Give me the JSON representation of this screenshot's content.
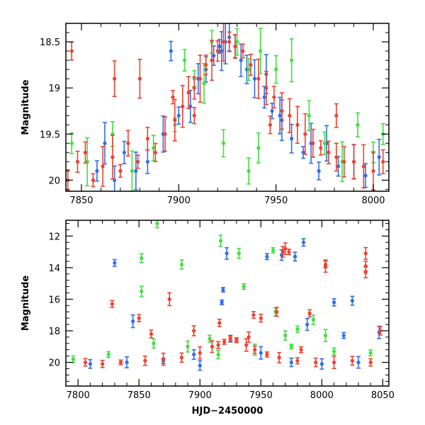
{
  "chart_data": [
    {
      "id": "top",
      "type": "scatter",
      "title": "",
      "xlabel": "",
      "ylabel": "Magnitude",
      "xlim": [
        7842,
        8008
      ],
      "ylim": [
        20.12,
        18.3
      ],
      "y_inverted": true,
      "grid": false,
      "xticks": [
        7850,
        7900,
        7950,
        8000
      ],
      "xtick_labels": [
        "7850",
        "7900",
        "7950",
        "8000"
      ],
      "yticks": [
        18.5,
        19,
        19.5,
        20
      ],
      "ytick_labels": [
        "18.5",
        "19",
        "19.5",
        "20"
      ],
      "series": [
        {
          "color": "#2f6ee8",
          "points": [
            [
              7858,
              19.9
            ],
            [
              7862,
              19.6
            ],
            [
              7867,
              20.0
            ],
            [
              7872,
              19.7
            ],
            [
              7878,
              19.9
            ],
            [
              7884,
              19.8
            ],
            [
              7892,
              19.5
            ],
            [
              7896,
              18.6
            ],
            [
              7900,
              19.3
            ],
            [
              7906,
              19.2
            ],
            [
              7910,
              18.9
            ],
            [
              7914,
              18.8
            ],
            [
              7918,
              18.65
            ],
            [
              7921,
              18.55
            ],
            [
              7924,
              18.5
            ],
            [
              7926,
              18.45
            ],
            [
              7929,
              18.55
            ],
            [
              7932,
              18.7
            ],
            [
              7935,
              18.8
            ],
            [
              7939,
              18.9
            ],
            [
              7944,
              19.1
            ],
            [
              7948,
              19.25
            ],
            [
              7953,
              19.35
            ],
            [
              7958,
              19.55
            ],
            [
              7964,
              19.7
            ],
            [
              7968,
              19.6
            ],
            [
              7972,
              19.9
            ],
            [
              7976,
              19.6
            ],
            [
              7982,
              19.85
            ],
            [
              7990,
              19.8
            ],
            [
              7996,
              19.95
            ],
            [
              8003,
              19.75
            ],
            [
              7945,
              18.85
            ],
            [
              7952,
              19.3
            ],
            [
              7922,
              18.6
            ]
          ]
        },
        {
          "color": "#3ee03e",
          "points": [
            [
              7845,
              19.6
            ],
            [
              7853,
              19.8
            ],
            [
              7866,
              19.5
            ],
            [
              7876,
              19.9
            ],
            [
              7887,
              19.65
            ],
            [
              7898,
              19.4
            ],
            [
              7903,
              18.7
            ],
            [
              7908,
              18.9
            ],
            [
              7913,
              18.95
            ],
            [
              7917,
              18.5
            ],
            [
              7930,
              18.5
            ],
            [
              7936,
              18.8
            ],
            [
              7942,
              18.6
            ],
            [
              7950,
              18.8
            ],
            [
              7958,
              18.7
            ],
            [
              7967,
              19.3
            ],
            [
              7975,
              19.6
            ],
            [
              7984,
              19.8
            ],
            [
              7992,
              19.4
            ],
            [
              8000,
              19.7
            ],
            [
              8005,
              19.5
            ],
            [
              7923,
              19.6
            ],
            [
              7941,
              19.65
            ],
            [
              7936,
              19.9
            ]
          ]
        },
        {
          "color": "#f04030",
          "points": [
            [
              7843,
              20.0
            ],
            [
              7845,
              18.6
            ],
            [
              7848,
              19.8
            ],
            [
              7852,
              19.7
            ],
            [
              7856,
              20.0
            ],
            [
              7861,
              19.85
            ],
            [
              7866,
              19.75
            ],
            [
              7870,
              19.9
            ],
            [
              7874,
              19.6
            ],
            [
              7879,
              19.8
            ],
            [
              7884,
              19.55
            ],
            [
              7888,
              19.7
            ],
            [
              7893,
              19.5
            ],
            [
              7898,
              19.35
            ],
            [
              7902,
              19.2
            ],
            [
              7905,
              19.05
            ],
            [
              7908,
              19.0
            ],
            [
              7911,
              18.9
            ],
            [
              7914,
              18.75
            ],
            [
              7917,
              18.7
            ],
            [
              7920,
              18.6
            ],
            [
              7923,
              18.5
            ],
            [
              7926,
              18.5
            ],
            [
              7929,
              18.55
            ],
            [
              7933,
              18.6
            ],
            [
              7937,
              18.75
            ],
            [
              7941,
              18.9
            ],
            [
              7945,
              19.0
            ],
            [
              7949,
              19.1
            ],
            [
              7953,
              19.25
            ],
            [
              7957,
              19.3
            ],
            [
              7961,
              19.4
            ],
            [
              7965,
              19.5
            ],
            [
              7969,
              19.6
            ],
            [
              7973,
              19.65
            ],
            [
              7977,
              19.7
            ],
            [
              7981,
              19.75
            ],
            [
              7985,
              19.8
            ],
            [
              7990,
              19.8
            ],
            [
              7995,
              19.85
            ],
            [
              8000,
              19.9
            ],
            [
              8005,
              19.8
            ],
            [
              7867,
              18.9
            ],
            [
              7880,
              18.9
            ],
            [
              7897,
              19.1
            ],
            [
              7908,
              19.3
            ],
            [
              7947,
              19.4
            ],
            [
              7981,
              19.3
            ]
          ]
        }
      ]
    },
    {
      "id": "bottom",
      "type": "scatter",
      "title": "",
      "xlabel": "HJD−2450000",
      "ylabel": "Magnitude",
      "xlim": [
        7790,
        8055
      ],
      "ylim": [
        21.5,
        11
      ],
      "y_inverted": true,
      "grid": false,
      "xticks": [
        7800,
        7850,
        7900,
        7950,
        8000,
        8050
      ],
      "xtick_labels": [
        "7800",
        "7850",
        "7900",
        "7950",
        "8000",
        "8050"
      ],
      "yticks": [
        12,
        14,
        16,
        18,
        20
      ],
      "ytick_labels": [
        "12",
        "14",
        "16",
        "18",
        "20"
      ],
      "series": [
        {
          "color": "#2f6ee8",
          "points": [
            [
              7830,
              13.7
            ],
            [
              7845,
              17.4
            ],
            [
              7900,
              20.2
            ],
            [
              7918,
              16.2
            ],
            [
              7919,
              15.4
            ],
            [
              7922,
              13.1
            ],
            [
              7955,
              13.3
            ],
            [
              7967,
              13.2
            ],
            [
              7978,
              13.3
            ],
            [
              7985,
              12.4
            ],
            [
              8010,
              16.2
            ],
            [
              8025,
              16.1
            ],
            [
              7988,
              17.6
            ],
            [
              8018,
              18.3
            ],
            [
              8047,
              18.1
            ],
            [
              7810,
              20.1
            ],
            [
              7840,
              20.0
            ],
            [
              7870,
              19.9
            ],
            [
              7895,
              19.5
            ],
            [
              7925,
              18.5
            ],
            [
              7930,
              18.6
            ],
            [
              7950,
              19.4
            ],
            [
              7975,
              20.0
            ],
            [
              8000,
              20.1
            ],
            [
              8030,
              20.0
            ]
          ]
        },
        {
          "color": "#3ee03e",
          "points": [
            [
              7796,
              19.8
            ],
            [
              7825,
              19.5
            ],
            [
              7865,
              11.2
            ],
            [
              7852,
              13.4
            ],
            [
              7852,
              15.5
            ],
            [
              7885,
              13.8
            ],
            [
              7917,
              12.3
            ],
            [
              7932,
              13.1
            ],
            [
              7936,
              15.2
            ],
            [
              7960,
              12.9
            ],
            [
              7980,
              17.9
            ],
            [
              7962,
              16.8
            ],
            [
              7970,
              18.3
            ],
            [
              7993,
              17.3
            ],
            [
              8003,
              18.3
            ],
            [
              7862,
              18.8
            ],
            [
              7890,
              19.0
            ],
            [
              7908,
              18.5
            ],
            [
              7915,
              19.5
            ],
            [
              7945,
              19.2
            ],
            [
              7975,
              19.0
            ],
            [
              8010,
              19.3
            ],
            [
              8040,
              19.4
            ]
          ]
        },
        {
          "color": "#f04030",
          "points": [
            [
              7828,
              16.3
            ],
            [
              7850,
              17.2
            ],
            [
              7860,
              18.2
            ],
            [
              7875,
              16.0
            ],
            [
              7916,
              17.5
            ],
            [
              7944,
              17.0
            ],
            [
              7950,
              17.2
            ],
            [
              7963,
              16.8
            ],
            [
              7968,
              13.0
            ],
            [
              7970,
              12.8
            ],
            [
              7973,
              13.0
            ],
            [
              7990,
              16.9
            ],
            [
              8003,
              13.8
            ],
            [
              8003,
              13.9
            ],
            [
              8036,
              13.1
            ],
            [
              8036,
              13.9
            ],
            [
              8036,
              14.3
            ],
            [
              8048,
              18.0
            ],
            [
              7806,
              20.0
            ],
            [
              7820,
              20.1
            ],
            [
              7835,
              20.0
            ],
            [
              7855,
              19.9
            ],
            [
              7870,
              19.8
            ],
            [
              7885,
              19.7
            ],
            [
              7900,
              19.4
            ],
            [
              7910,
              19.0
            ],
            [
              7915,
              18.9
            ],
            [
              7920,
              18.7
            ],
            [
              7925,
              18.5
            ],
            [
              7930,
              18.6
            ],
            [
              7938,
              18.9
            ],
            [
              7945,
              19.2
            ],
            [
              7955,
              19.5
            ],
            [
              7965,
              19.7
            ],
            [
              7980,
              19.9
            ],
            [
              7995,
              20.0
            ],
            [
              8010,
              20.0
            ],
            [
              8025,
              19.9
            ],
            [
              8040,
              20.0
            ],
            [
              7895,
              18.0
            ],
            [
              7940,
              18.4
            ],
            [
              7983,
              19.2
            ]
          ]
        }
      ]
    }
  ]
}
